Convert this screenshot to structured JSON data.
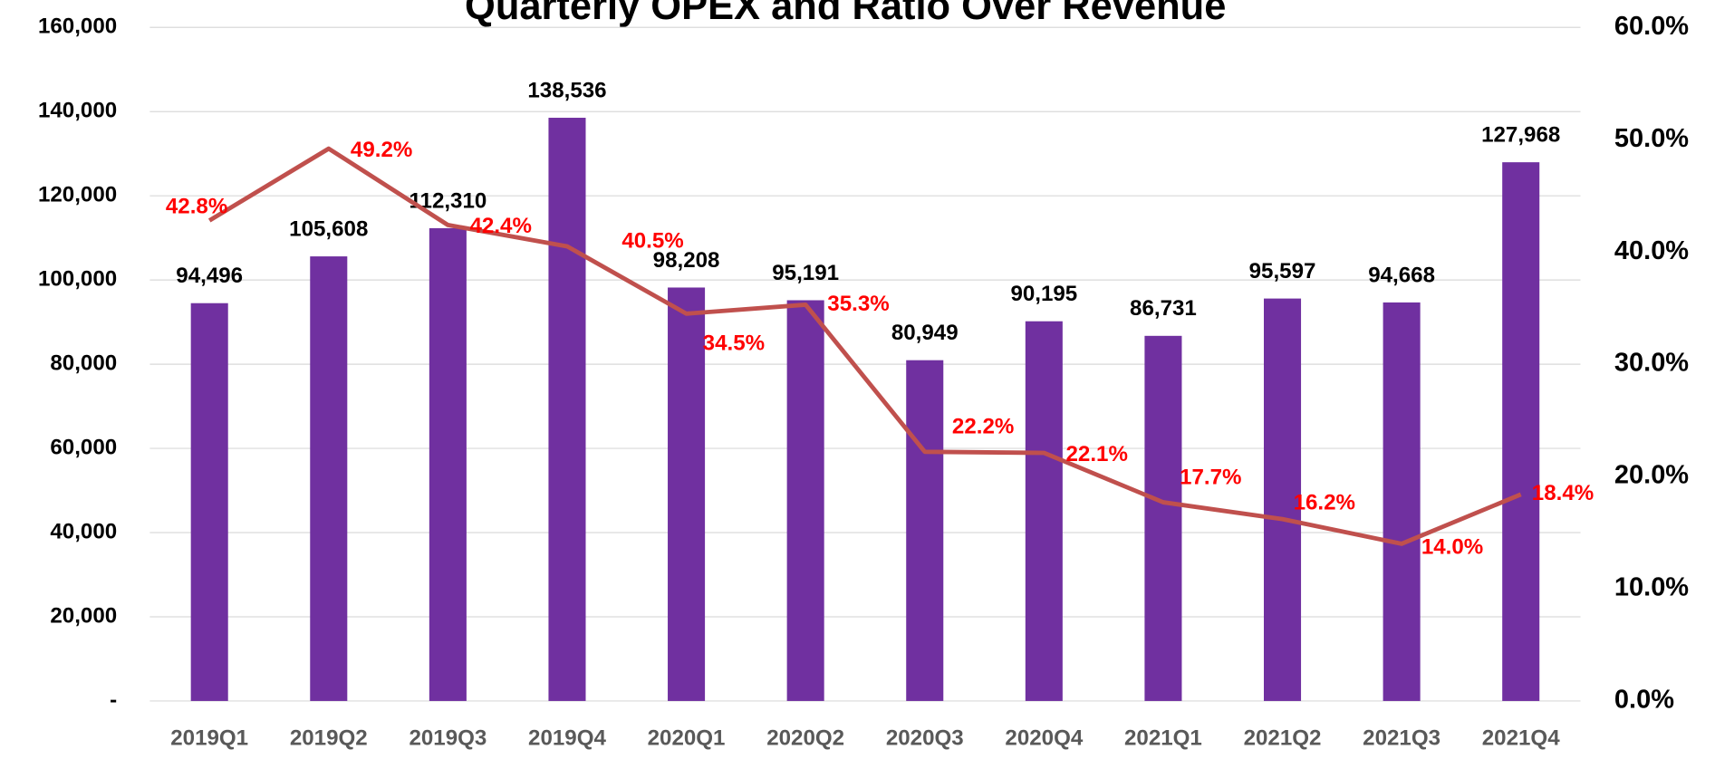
{
  "chart_data": {
    "type": "bar",
    "title": "Quarterly OPEX and Ratio Over Revenue",
    "categories": [
      "2019Q1",
      "2019Q2",
      "2019Q3",
      "2019Q4",
      "2020Q1",
      "2020Q2",
      "2020Q3",
      "2020Q4",
      "2021Q1",
      "2021Q2",
      "2021Q3",
      "2021Q4"
    ],
    "series": [
      {
        "color": "#7030a0",
        "values": [
          94496,
          105608,
          112310,
          138536,
          98208,
          95191,
          80949,
          90195,
          86731,
          95597,
          94668,
          127968
        ],
        "value_labels": [
          "94,496",
          "105,608",
          "112,310",
          "138,536",
          "98,208",
          "95,191",
          "80,949",
          "90,195",
          "86,731",
          "95,597",
          "94,668",
          "127,968"
        ]
      },
      {
        "type": "line",
        "axis": "y2",
        "color": "#c0504d",
        "values": [
          42.8,
          49.2,
          42.4,
          40.5,
          34.5,
          35.3,
          22.2,
          22.1,
          17.7,
          16.2,
          14.0,
          18.4
        ],
        "value_labels": [
          "42.8%",
          "49.2%",
          "42.4%",
          "40.5%",
          "34.5%",
          "35.3%",
          "22.2%",
          "22.1%",
          "17.7%",
          "16.2%",
          "14.0%",
          "18.4%"
        ]
      }
    ],
    "ylim": [
      0,
      160000
    ],
    "yticks": [
      {
        "value": 0,
        "label": "-"
      },
      {
        "value": 20000,
        "label": "20,000"
      },
      {
        "value": 40000,
        "label": "40,000"
      },
      {
        "value": 60000,
        "label": "60,000"
      },
      {
        "value": 80000,
        "label": "80,000"
      },
      {
        "value": 100000,
        "label": "100,000"
      },
      {
        "value": 120000,
        "label": "120,000"
      },
      {
        "value": 140000,
        "label": "140,000"
      },
      {
        "value": 160000,
        "label": "160,000"
      }
    ],
    "y2lim": [
      0,
      60
    ],
    "y2ticks": [
      {
        "value": 0,
        "label": "0.0%"
      },
      {
        "value": 10,
        "label": "10.0%"
      },
      {
        "value": 20,
        "label": "20.0%"
      },
      {
        "value": 30,
        "label": "30.0%"
      },
      {
        "value": 40,
        "label": "40.0%"
      },
      {
        "value": 50,
        "label": "50.0%"
      },
      {
        "value": 60,
        "label": "60.0%"
      }
    ],
    "grid": true
  }
}
